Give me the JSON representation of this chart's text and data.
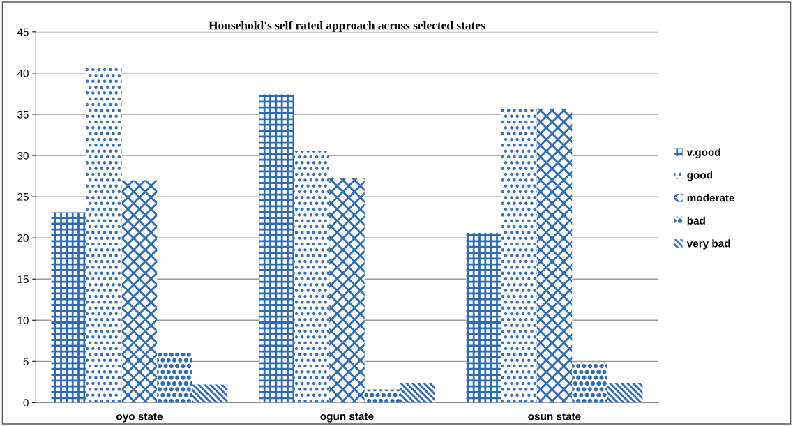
{
  "chart_data": {
    "type": "bar",
    "title": "Household's self rated approach across selected states",
    "categories": [
      "oyo state",
      "ogun state",
      "osun state"
    ],
    "series": [
      {
        "name": "v.good",
        "color": "#2e6bb3",
        "values": [
          23.1,
          37.4,
          20.6
        ]
      },
      {
        "name": "good",
        "color": "#2e6bb3",
        "values": [
          40.9,
          30.6,
          35.7
        ]
      },
      {
        "name": "moderate",
        "color": "#2e6bb3",
        "values": [
          27.0,
          27.3,
          35.7
        ]
      },
      {
        "name": "bad",
        "color": "#2e6bb3",
        "values": [
          6.0,
          1.6,
          4.9
        ]
      },
      {
        "name": "very bad",
        "color": "#2e6bb3",
        "values": [
          2.2,
          2.4,
          2.4
        ]
      }
    ],
    "ylim": [
      0,
      45
    ],
    "yticks": [
      0,
      5,
      10,
      15,
      20,
      25,
      30,
      35,
      40,
      45
    ],
    "grid": "y",
    "legend": "right"
  }
}
